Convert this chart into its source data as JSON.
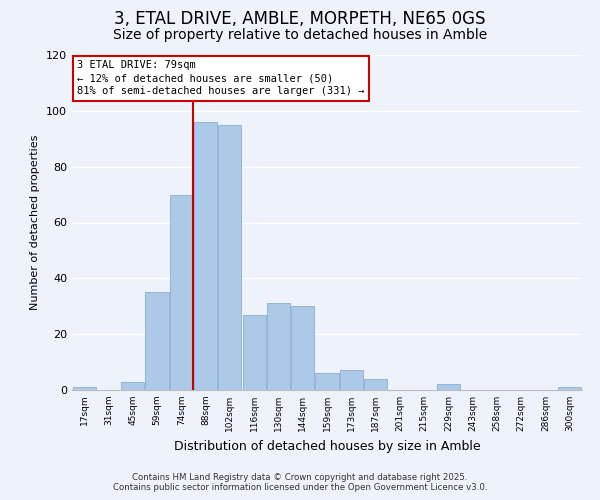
{
  "title": "3, ETAL DRIVE, AMBLE, MORPETH, NE65 0GS",
  "subtitle": "Size of property relative to detached houses in Amble",
  "xlabel": "Distribution of detached houses by size in Amble",
  "ylabel": "Number of detached properties",
  "categories": [
    "17sqm",
    "31sqm",
    "45sqm",
    "59sqm",
    "74sqm",
    "88sqm",
    "102sqm",
    "116sqm",
    "130sqm",
    "144sqm",
    "159sqm",
    "173sqm",
    "187sqm",
    "201sqm",
    "215sqm",
    "229sqm",
    "243sqm",
    "258sqm",
    "272sqm",
    "286sqm",
    "300sqm"
  ],
  "values": [
    1,
    0,
    3,
    35,
    70,
    96,
    95,
    27,
    31,
    30,
    6,
    7,
    4,
    0,
    0,
    2,
    0,
    0,
    0,
    0,
    1
  ],
  "bar_color": "#adc9e8",
  "bar_edge_color": "#8ab0d0",
  "vline_x_index": 4.5,
  "vline_color": "#cc0000",
  "ylim": [
    0,
    120
  ],
  "yticks": [
    0,
    20,
    40,
    60,
    80,
    100,
    120
  ],
  "annotation_title": "3 ETAL DRIVE: 79sqm",
  "annotation_line1": "← 12% of detached houses are smaller (50)",
  "annotation_line2": "81% of semi-detached houses are larger (331) →",
  "annotation_box_color": "#cc0000",
  "background_color": "#eef2fb",
  "footer1": "Contains HM Land Registry data © Crown copyright and database right 2025.",
  "footer2": "Contains public sector information licensed under the Open Government Licence v3.0.",
  "grid_color": "#ffffff",
  "title_fontsize": 12,
  "subtitle_fontsize": 10,
  "ylabel_text": "Number of detached properties"
}
